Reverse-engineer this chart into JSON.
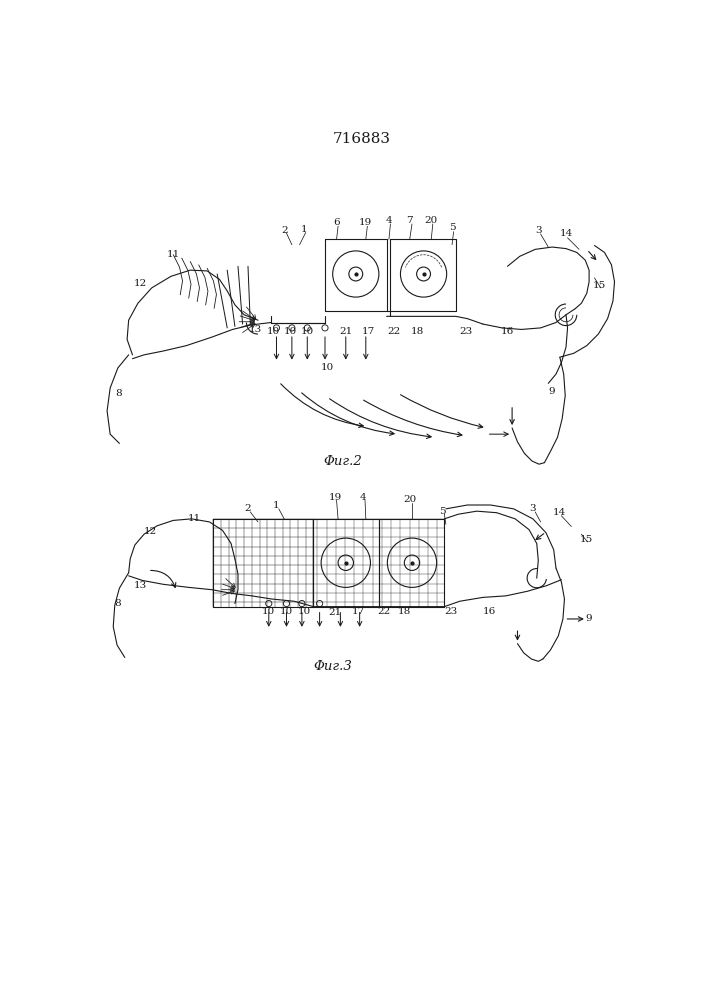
{
  "title": "716883",
  "fig2_label": "Φиг.2",
  "fig3_label": "Φиг.3",
  "bg_color": "#ffffff",
  "line_color": "#1a1a1a",
  "title_fontsize": 11,
  "label_fontsize": 7.5
}
